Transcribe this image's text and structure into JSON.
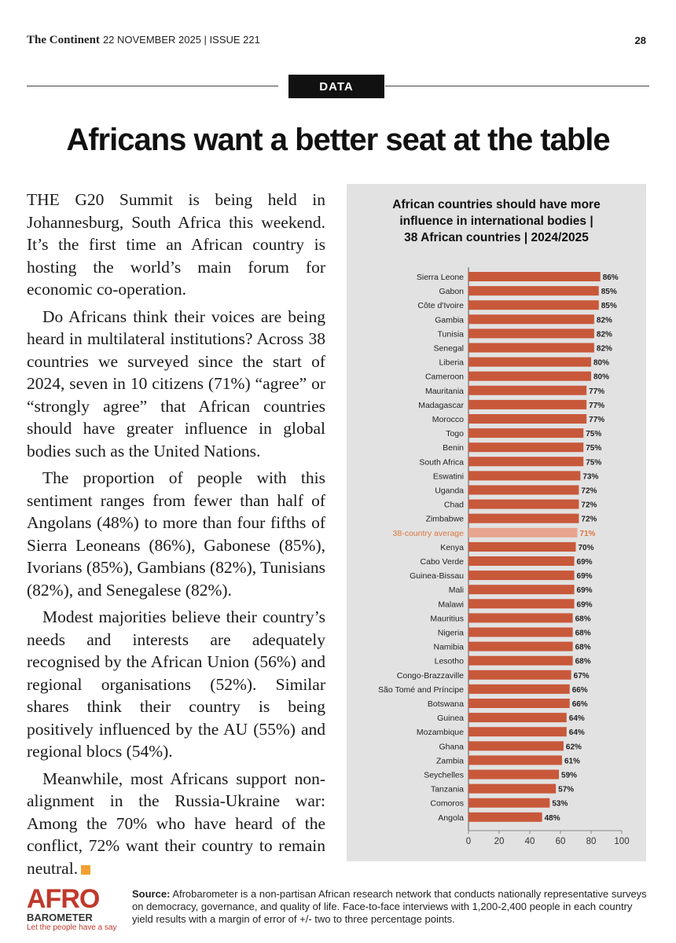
{
  "header": {
    "publication": "The Continent",
    "issue_info": "22 NOVEMBER 2025 | ISSUE 221",
    "page_number": "28",
    "section_tag": "DATA"
  },
  "article": {
    "headline": "Africans want a better seat at the table",
    "paragraphs": [
      "THE G20 Summit is being held in Johannesburg, South Africa this weekend. It’s the first time an African country is hosting the world’s main forum for economic co-operation.",
      "Do Africans think their voices are being heard in multilateral institutions? Across 38 countries we surveyed since the start of 2024, seven in 10 citizens (71%) “agree” or “strongly agree” that African countries should have greater influence in global bodies such as the United Nations.",
      "The proportion of people with this sentiment ranges from fewer than half of Angolans (48%) to more than four fifths of Sierra Leoneans (86%), Gabonese (85%), Ivorians (85%), Gambians (82%), Tunisians (82%), and Senegalese (82%).",
      "Modest majorities believe their country’s needs and interests are adequately recognised by the African Union (56%) and regional organisations (52%). Similar shares think their country is being positively influenced by the AU (55%) and regional blocs (54%).",
      "Meanwhile, most Africans support non-alignment in the Russia-Ukraine war: Among the 70% who have heard of the conflict, 72% want their country to remain neutral."
    ]
  },
  "chart_data": {
    "type": "bar",
    "orientation": "horizontal",
    "title": "African countries should have more influence in international bodies | 38 African countries | 2024/2025",
    "categories": [
      "Sierra Leone",
      "Gabon",
      "Côte d'Ivoire",
      "Gambia",
      "Tunisia",
      "Senegal",
      "Liberia",
      "Cameroon",
      "Mauritania",
      "Madagascar",
      "Morocco",
      "Togo",
      "Benin",
      "South Africa",
      "Eswatini",
      "Uganda",
      "Chad",
      "Zimbabwe",
      "38-country average",
      "Kenya",
      "Cabo Verde",
      "Guinea-Bissau",
      "Mali",
      "Malawi",
      "Mauritius",
      "Nigeria",
      "Namibia",
      "Lesotho",
      "Congo-Brazzaville",
      "São Tomé and Príncipe",
      "Botswana",
      "Guinea",
      "Mozambique",
      "Ghana",
      "Zambia",
      "Seychelles",
      "Tanzania",
      "Comoros",
      "Angola"
    ],
    "values": [
      86,
      85,
      85,
      82,
      82,
      82,
      80,
      80,
      77,
      77,
      77,
      75,
      75,
      75,
      73,
      72,
      72,
      72,
      71,
      70,
      69,
      69,
      69,
      69,
      68,
      68,
      68,
      68,
      67,
      66,
      66,
      64,
      64,
      62,
      61,
      59,
      57,
      53,
      48
    ],
    "value_suffix": "%",
    "highlight_category": "38-country average",
    "xlim": [
      0,
      100
    ],
    "xticks": [
      0,
      20,
      40,
      60,
      80,
      100
    ],
    "colors": {
      "bar": "#c8583a",
      "highlight_bar": "#e8a48c",
      "highlight_label": "#d9773f",
      "background": "#e2e2e2"
    }
  },
  "footer": {
    "logo_text": "AFRO",
    "logo_subtext": "BAROMETER",
    "logo_tagline": "Let the people have a say",
    "source_label": "Source:",
    "source_text": "Afrobarometer is a non-partisan African research network that conducts nationally representative surveys on democracy, governance, and quality of life. Face-to-face interviews with 1,200-2,400 people in each country yield results with a margin of error of +/- two to three percentage points."
  }
}
